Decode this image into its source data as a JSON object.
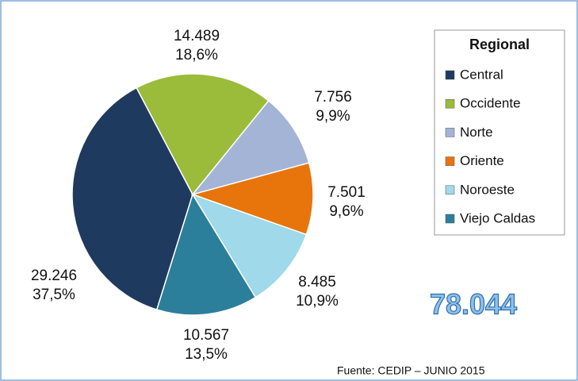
{
  "chart_data": {
    "type": "pie",
    "categories": [
      "Central",
      "Occidente",
      "Norte",
      "Oriente",
      "Noroeste",
      "Viejo Caldas"
    ],
    "values": [
      29246,
      14489,
      7756,
      7501,
      8485,
      10567
    ],
    "value_labels": [
      "29.246",
      "14.489",
      "7.756",
      "7.501",
      "8.485",
      "10.567"
    ],
    "percents": [
      37.5,
      18.6,
      9.9,
      9.6,
      10.9,
      13.5
    ],
    "percent_labels": [
      "37,5%",
      "18,6%",
      "9,9%",
      "9,6%",
      "10,9%",
      "13,5%"
    ],
    "colors": [
      "#1f3a5f",
      "#9bbb3b",
      "#a3b4d6",
      "#e8740c",
      "#9fd9ea",
      "#2b7f9a"
    ],
    "legend_title": "Regional",
    "legend": "right",
    "total": 78044,
    "total_label": "78.044",
    "source": "Fuente: CEDIP – JUNIO  2015"
  }
}
